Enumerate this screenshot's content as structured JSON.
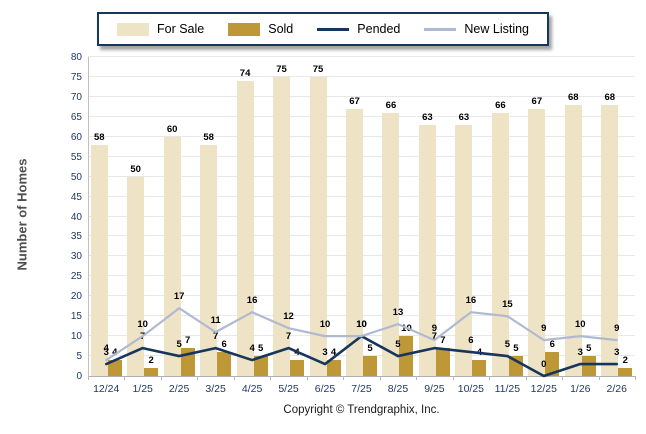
{
  "ylabel": "Number of Homes",
  "copyright": "Copyright © Trendgraphix, Inc.",
  "colors": {
    "for_sale": "#EFE3C6",
    "sold": "#BE9737",
    "pended": "#17365D",
    "new_listing": "#AFB9D2",
    "tick_text": "#1F3864",
    "gridline": "#E8E8E8"
  },
  "chart_data": {
    "type": "bar",
    "subtype": "grouped bars with overlaid lines",
    "title": "",
    "xlabel": "",
    "ylabel": "Number of Homes",
    "ylim": [
      0,
      80
    ],
    "ytick_step": 5,
    "yticks": [
      0,
      5,
      10,
      15,
      20,
      25,
      30,
      35,
      40,
      45,
      50,
      55,
      60,
      65,
      70,
      75,
      80
    ],
    "grid": true,
    "legend_position": "top",
    "categories": [
      "12/24",
      "1/25",
      "2/25",
      "3/25",
      "4/25",
      "5/25",
      "6/25",
      "7/25",
      "8/25",
      "9/25",
      "10/25",
      "11/25",
      "12/25",
      "1/26",
      "2/26"
    ],
    "series": [
      {
        "name": "For Sale",
        "type": "bar",
        "color": "#EFE3C6",
        "values": [
          58,
          50,
          60,
          58,
          74,
          75,
          75,
          67,
          66,
          63,
          63,
          66,
          67,
          68,
          68
        ]
      },
      {
        "name": "Sold",
        "type": "bar",
        "color": "#BE9737",
        "values": [
          4,
          2,
          7,
          6,
          5,
          4,
          4,
          5,
          10,
          7,
          4,
          5,
          6,
          5,
          2
        ]
      },
      {
        "name": "Pended",
        "type": "line",
        "color": "#17365D",
        "values": [
          3,
          7,
          5,
          7,
          4,
          7,
          3,
          10,
          5,
          7,
          6,
          5,
          0,
          3,
          3
        ]
      },
      {
        "name": "New Listing",
        "type": "line",
        "color": "#AFB9D2",
        "values": [
          4,
          10,
          17,
          11,
          16,
          12,
          10,
          10,
          13,
          9,
          16,
          15,
          9,
          10,
          9
        ]
      }
    ]
  }
}
